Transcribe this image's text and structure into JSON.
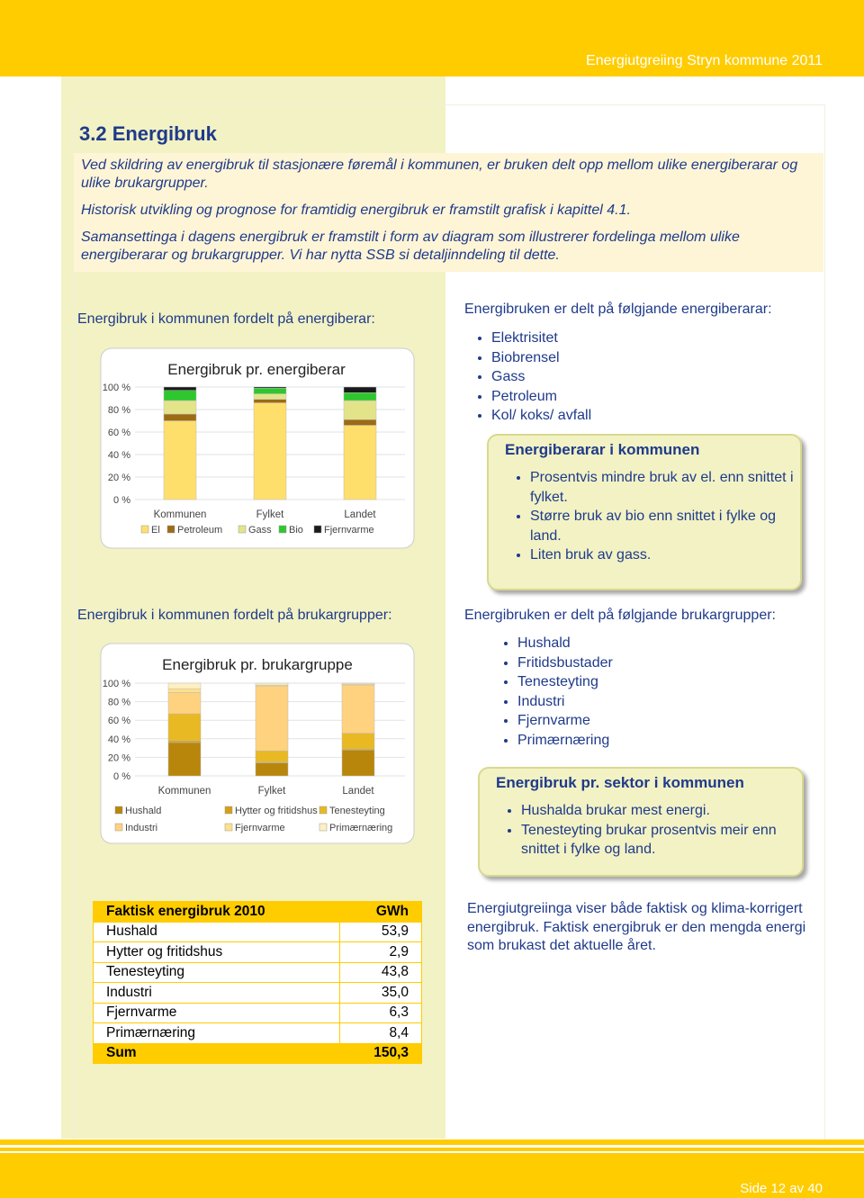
{
  "header": {
    "title": "Energiutgreiing Stryn kommune 2011"
  },
  "section": {
    "heading": "3.2 Energibruk",
    "paragraphs": [
      "Ved skildring av energibruk til stasjonære føremål i kommunen, er bruken delt opp mellom ulike energiberarar og ulike brukargrupper.",
      "Historisk utvikling og prognose for framtidig energibruk er framstilt grafisk i kapittel 4.1.",
      "Samansettinga i dagens energibruk er framstilt i form av diagram som illustrerer fordelinga mellom ulike energiberarar og brukargrupper. Vi har nytta SSB si detaljinndeling til dette."
    ]
  },
  "energiberar": {
    "heading": "Energibruk i kommunen fordelt på energiberar:",
    "list_heading": "Energibruken er delt på følgjande energiberarar:",
    "list": [
      "Elektrisitet",
      "Biobrensel",
      "Gass",
      "Petroleum",
      "Kol/ koks/ avfall"
    ],
    "box": {
      "title": "Energiberarar i kommunen",
      "items": [
        "Prosentvis mindre bruk av el. enn snittet i fylket.",
        "Større bruk av bio enn snittet i fylke og land.",
        "Liten bruk av gass."
      ]
    }
  },
  "brukargruppe": {
    "heading": "Energibruk i kommunen fordelt på brukargrupper:",
    "list_heading": "Energibruken er delt på følgjande brukargrupper:",
    "list": [
      "Hushald",
      "Fritidsbustader",
      "Tenesteyting",
      "Industri",
      "Fjernvarme",
      "Primærnæring"
    ],
    "box": {
      "title": "Energibruk pr. sektor i kommunen",
      "items": [
        "Hushalda brukar mest energi.",
        "Tenesteyting brukar prosentvis meir enn snittet i fylke og land."
      ]
    }
  },
  "table": {
    "header": [
      "Faktisk energibruk 2010",
      "GWh"
    ],
    "rows": [
      [
        "Hushald",
        "53,9"
      ],
      [
        "Hytter og fritidshus",
        "2,9"
      ],
      [
        "Tenesteyting",
        "43,8"
      ],
      [
        "Industri",
        "35,0"
      ],
      [
        "Fjernvarme",
        "6,3"
      ],
      [
        "Primærnæring",
        "8,4"
      ]
    ],
    "sum": [
      "Sum",
      "150,3"
    ]
  },
  "note": "Energiutgreiinga viser både faktisk og klima-korrigert energibruk. Faktisk energibruk er den mengda energi som brukast det aktuelle året.",
  "footer": {
    "page": "Side 12 av 40"
  },
  "chart_data": [
    {
      "type": "bar",
      "stacked": true,
      "title": "Energibruk pr. energiberar",
      "categories": [
        "Kommunen",
        "Fylket",
        "Landet"
      ],
      "series": [
        {
          "name": "El",
          "color": "#FFDF6B",
          "values": [
            70,
            86,
            66
          ]
        },
        {
          "name": "Petroleum",
          "color": "#9C6B14",
          "values": [
            6,
            3,
            5
          ]
        },
        {
          "name": "Gass",
          "color": "#E3E48A",
          "values": [
            12,
            5,
            17
          ]
        },
        {
          "name": "Bio",
          "color": "#2EC72E",
          "values": [
            9,
            5,
            7
          ]
        },
        {
          "name": "Fjernvarme",
          "color": "#1A1A1A",
          "values": [
            3,
            1,
            5
          ]
        }
      ],
      "ylim": [
        0,
        100
      ],
      "yticks": [
        {
          "value": 0,
          "label": "0 %"
        },
        {
          "value": 20,
          "label": "20 %"
        },
        {
          "value": 40,
          "label": "40 %"
        },
        {
          "value": 60,
          "label": "60 %"
        },
        {
          "value": 80,
          "label": "80 %"
        },
        {
          "value": 100,
          "label": "100 %"
        }
      ],
      "grid": true
    },
    {
      "type": "bar",
      "stacked": true,
      "title": "Energibruk pr. brukargruppe",
      "categories": [
        "Kommunen",
        "Fylket",
        "Landet"
      ],
      "series": [
        {
          "name": "Hushald",
          "color": "#B8860B",
          "values": [
            36,
            14,
            28
          ]
        },
        {
          "name": "Hytter og fritidshus",
          "color": "#D4A017",
          "values": [
            2,
            1,
            1
          ]
        },
        {
          "name": "Tenesteyting",
          "color": "#E8B923",
          "values": [
            29,
            12,
            17
          ]
        },
        {
          "name": "Industri",
          "color": "#FFD27F",
          "values": [
            23,
            70,
            52
          ]
        },
        {
          "name": "Fjernvarme",
          "color": "#FFE08A",
          "values": [
            4,
            1,
            1
          ]
        },
        {
          "name": "Primærnæring",
          "color": "#FFF0C2",
          "values": [
            6,
            2,
            1
          ]
        }
      ],
      "ylim": [
        0,
        100
      ],
      "yticks": [
        {
          "value": 0,
          "label": "0 %"
        },
        {
          "value": 20,
          "label": "20 %"
        },
        {
          "value": 40,
          "label": "40 %"
        },
        {
          "value": 60,
          "label": "60 %"
        },
        {
          "value": 80,
          "label": "80 %"
        },
        {
          "value": 100,
          "label": "100 %"
        }
      ],
      "grid": true
    }
  ]
}
